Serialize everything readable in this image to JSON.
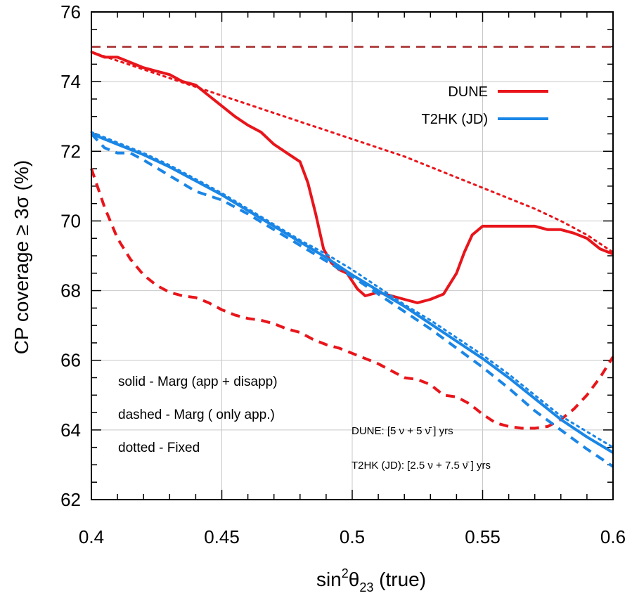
{
  "chart_data": {
    "type": "line",
    "title": "",
    "xlabel_parts": {
      "base": "sin",
      "sup": "2",
      "theta": "θ",
      "sub": "23",
      "suffix": " (true)"
    },
    "ylabel": "CP coverage ≥ 3σ (%)",
    "xlim": [
      0.4,
      0.6
    ],
    "ylim": [
      62,
      76
    ],
    "x_ticks": [
      0.4,
      0.45,
      0.5,
      0.55,
      0.6
    ],
    "x_tick_labels": [
      "0.4",
      "0.45",
      "0.5",
      "0.55",
      "0.6"
    ],
    "y_ticks": [
      62,
      64,
      66,
      68,
      70,
      72,
      74,
      76
    ],
    "y_tick_labels": [
      "62",
      "64",
      "66",
      "68",
      "70",
      "72",
      "74",
      "76"
    ],
    "grid": true,
    "legend_position": "top-right",
    "legend": [
      {
        "label": "DUNE",
        "color": "#e8151b"
      },
      {
        "label": "T2HK (JD)",
        "color": "#1a86e6"
      }
    ],
    "annotations": {
      "style_notes": [
        "solid - Marg (app + disapp)",
        "dashed - Marg ( only app.)",
        "dotted - Fixed"
      ],
      "dune_exposure": "DUNE: [5 ν + 5 ν̄ ] yrs",
      "t2hk_exposure": "T2HK (JD): [2.5 ν + 7.5 ν̄ ] yrs"
    },
    "series": [
      {
        "experiment": "DUNE",
        "style": "solid",
        "color": "#e8151b",
        "x": [
          0.4,
          0.405,
          0.41,
          0.415,
          0.42,
          0.425,
          0.43,
          0.435,
          0.44,
          0.445,
          0.45,
          0.455,
          0.46,
          0.465,
          0.47,
          0.475,
          0.48,
          0.483,
          0.486,
          0.489,
          0.492,
          0.495,
          0.498,
          0.502,
          0.505,
          0.51,
          0.515,
          0.52,
          0.525,
          0.53,
          0.535,
          0.54,
          0.543,
          0.546,
          0.55,
          0.555,
          0.56,
          0.565,
          0.57,
          0.575,
          0.58,
          0.585,
          0.59,
          0.595,
          0.6
        ],
        "y": [
          74.85,
          74.7,
          74.7,
          74.55,
          74.4,
          74.3,
          74.2,
          74.0,
          73.9,
          73.6,
          73.3,
          73.0,
          72.75,
          72.55,
          72.2,
          71.95,
          71.7,
          71.1,
          70.2,
          69.2,
          68.8,
          68.6,
          68.5,
          68.05,
          67.85,
          67.95,
          67.85,
          67.75,
          67.65,
          67.75,
          67.9,
          68.5,
          69.1,
          69.6,
          69.85,
          69.85,
          69.85,
          69.85,
          69.85,
          69.75,
          69.75,
          69.65,
          69.5,
          69.2,
          69.05
        ]
      },
      {
        "experiment": "DUNE",
        "style": "dashed",
        "color": "#e8151b",
        "x": [
          0.4,
          0.405,
          0.41,
          0.415,
          0.42,
          0.425,
          0.43,
          0.435,
          0.44,
          0.445,
          0.45,
          0.455,
          0.46,
          0.465,
          0.47,
          0.475,
          0.48,
          0.485,
          0.49,
          0.495,
          0.5,
          0.505,
          0.51,
          0.515,
          0.52,
          0.525,
          0.53,
          0.535,
          0.54,
          0.545,
          0.55,
          0.555,
          0.56,
          0.565,
          0.57,
          0.575,
          0.58,
          0.585,
          0.59,
          0.595,
          0.6
        ],
        "y": [
          71.5,
          70.4,
          69.5,
          68.9,
          68.45,
          68.15,
          67.95,
          67.85,
          67.8,
          67.65,
          67.45,
          67.3,
          67.2,
          67.15,
          67.05,
          66.9,
          66.8,
          66.6,
          66.45,
          66.35,
          66.2,
          66.05,
          65.9,
          65.7,
          65.5,
          65.45,
          65.3,
          65.0,
          64.95,
          64.75,
          64.45,
          64.2,
          64.1,
          64.05,
          64.05,
          64.1,
          64.3,
          64.6,
          65.0,
          65.5,
          66.1
        ]
      },
      {
        "experiment": "DUNE",
        "style": "dotted",
        "color": "#e8151b",
        "x": [
          0.4,
          0.41,
          0.42,
          0.43,
          0.44,
          0.45,
          0.46,
          0.47,
          0.48,
          0.49,
          0.5,
          0.51,
          0.52,
          0.53,
          0.54,
          0.55,
          0.56,
          0.57,
          0.58,
          0.59,
          0.6
        ],
        "y": [
          74.85,
          74.6,
          74.35,
          74.1,
          73.85,
          73.6,
          73.35,
          73.1,
          72.85,
          72.6,
          72.35,
          72.1,
          71.85,
          71.55,
          71.25,
          70.95,
          70.65,
          70.35,
          70.0,
          69.6,
          69.1
        ]
      },
      {
        "experiment": "T2HK (JD)",
        "style": "solid",
        "color": "#1a86e6",
        "x": [
          0.4,
          0.41,
          0.42,
          0.43,
          0.44,
          0.45,
          0.46,
          0.47,
          0.48,
          0.49,
          0.5,
          0.51,
          0.52,
          0.53,
          0.54,
          0.55,
          0.56,
          0.57,
          0.58,
          0.59,
          0.6
        ],
        "y": [
          72.5,
          72.2,
          71.9,
          71.55,
          71.15,
          70.75,
          70.3,
          69.85,
          69.4,
          68.95,
          68.45,
          68.0,
          67.55,
          67.05,
          66.55,
          66.05,
          65.5,
          64.9,
          64.3,
          63.8,
          63.35
        ]
      },
      {
        "experiment": "T2HK (JD)",
        "style": "dashed",
        "color": "#1a86e6",
        "x": [
          0.4,
          0.405,
          0.41,
          0.415,
          0.42,
          0.43,
          0.44,
          0.45,
          0.46,
          0.47,
          0.48,
          0.49,
          0.5,
          0.51,
          0.52,
          0.53,
          0.54,
          0.55,
          0.56,
          0.57,
          0.58,
          0.59,
          0.6
        ],
        "y": [
          72.5,
          72.1,
          71.95,
          71.95,
          71.75,
          71.3,
          70.85,
          70.6,
          70.2,
          69.75,
          69.3,
          68.85,
          68.4,
          67.9,
          67.4,
          66.9,
          66.35,
          65.8,
          65.2,
          64.55,
          64.0,
          63.45,
          62.95
        ]
      },
      {
        "experiment": "T2HK (JD)",
        "style": "dotted",
        "color": "#1a86e6",
        "x": [
          0.4,
          0.41,
          0.42,
          0.43,
          0.44,
          0.45,
          0.46,
          0.47,
          0.48,
          0.49,
          0.5,
          0.51,
          0.52,
          0.53,
          0.54,
          0.55,
          0.56,
          0.57,
          0.58,
          0.59,
          0.6
        ],
        "y": [
          72.55,
          72.25,
          71.95,
          71.6,
          71.2,
          70.8,
          70.35,
          69.9,
          69.45,
          69.05,
          68.6,
          68.1,
          67.6,
          67.15,
          66.65,
          66.15,
          65.6,
          65.0,
          64.4,
          63.95,
          63.5
        ]
      },
      {
        "experiment": "reference",
        "style": "dashed",
        "color": "#a52a2a",
        "x": [
          0.4,
          0.6
        ],
        "y": [
          75,
          75
        ]
      }
    ]
  }
}
